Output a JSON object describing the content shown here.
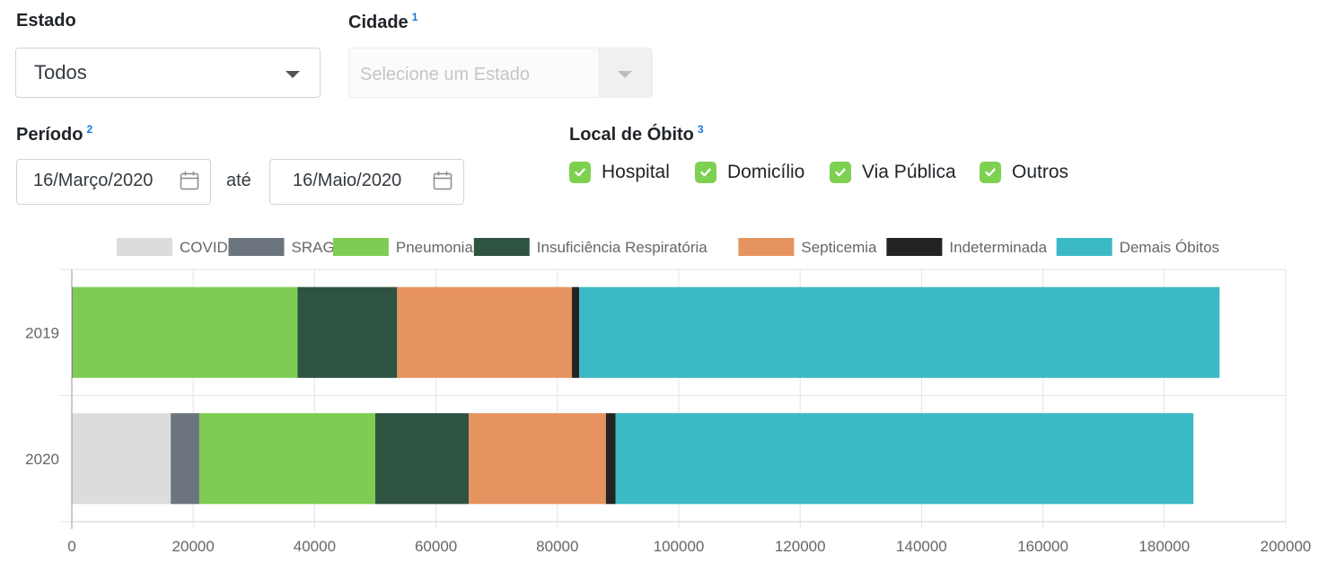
{
  "filters": {
    "estado": {
      "label": "Estado",
      "value": "Todos"
    },
    "cidade": {
      "label": "Cidade",
      "note": "1",
      "placeholder": "Selecione um Estado"
    },
    "periodo": {
      "label": "Período",
      "note": "2",
      "start": "16/Março/2020",
      "separator": "até",
      "end": "16/Maio/2020"
    },
    "local": {
      "label": "Local de Óbito",
      "note": "3",
      "options": [
        {
          "label": "Hospital",
          "checked": true
        },
        {
          "label": "Domicílio",
          "checked": true
        },
        {
          "label": "Via Pública",
          "checked": true
        },
        {
          "label": "Outros",
          "checked": true
        }
      ]
    }
  },
  "icons": {
    "dropdown": "chevron-down-icon",
    "calendar": "calendar-icon",
    "checkbox": "check-icon"
  },
  "chart_data": {
    "type": "bar",
    "orientation": "horizontal",
    "stacked": true,
    "categories": [
      "2019",
      "2020"
    ],
    "series": [
      {
        "name": "COVID",
        "color": "#dcdcdc",
        "values": [
          0,
          16300
        ]
      },
      {
        "name": "SRAG",
        "color": "#6c757d",
        "values": [
          200,
          4700
        ]
      },
      {
        "name": "Pneumonia",
        "color": "#7ecd52",
        "values": [
          37000,
          29000
        ]
      },
      {
        "name": "Insuficiência Respiratória",
        "color": "#2f5341",
        "values": [
          16400,
          15400
        ]
      },
      {
        "name": "Septicemia",
        "color": "#e69360",
        "values": [
          28800,
          22600
        ]
      },
      {
        "name": "Indeterminada",
        "color": "#232323",
        "values": [
          1200,
          1600
        ]
      },
      {
        "name": "Demais Óbitos",
        "color": "#3bb9c5",
        "values": [
          105500,
          95200
        ]
      }
    ],
    "xlim": [
      0,
      200000
    ],
    "xticks": [
      "0",
      "20000",
      "40000",
      "60000",
      "80000",
      "100000",
      "120000",
      "140000",
      "160000",
      "180000",
      "200000"
    ],
    "grid": true,
    "legend": "top"
  }
}
